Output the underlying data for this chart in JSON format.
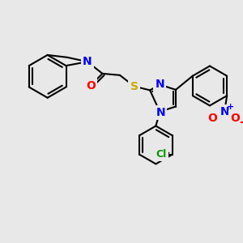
{
  "background_color": "#e8e8e8",
  "lw": 1.5,
  "black": "#000000",
  "blue": "#0000ff",
  "red": "#ff0000",
  "yellow": "#ccaa00",
  "green": "#009900",
  "fontsize": 9,
  "xlim": [
    0,
    300
  ],
  "ylim": [
    0,
    300
  ]
}
